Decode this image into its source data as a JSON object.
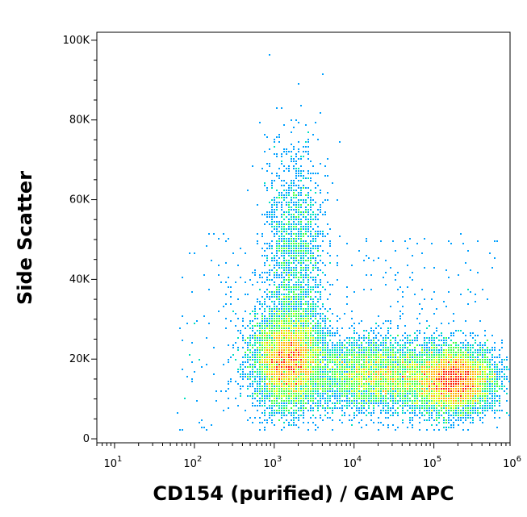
{
  "chart_data": {
    "type": "scatter",
    "subtype": "flow-cytometry-density-dot-plot",
    "title": "",
    "xlabel": "CD154 (purified) / GAM APC",
    "ylabel": "Side Scatter",
    "x_scale": "log",
    "xlim": [
      6,
      900000
    ],
    "ylim": [
      -1000,
      102000
    ],
    "x_ticks": [
      {
        "value": 10,
        "base": "10",
        "exp": "1"
      },
      {
        "value": 100,
        "base": "10",
        "exp": "2"
      },
      {
        "value": 1000,
        "base": "10",
        "exp": "3"
      },
      {
        "value": 10000,
        "base": "10",
        "exp": "4"
      },
      {
        "value": 100000,
        "base": "10",
        "exp": "5"
      },
      {
        "value": 1000000,
        "base": "10",
        "exp": "6"
      }
    ],
    "y_ticks": [
      {
        "value": 0,
        "label": "0"
      },
      {
        "value": 20000,
        "label": "20K"
      },
      {
        "value": 40000,
        "label": "40K"
      },
      {
        "value": 60000,
        "label": "60K"
      },
      {
        "value": 80000,
        "label": "80K"
      },
      {
        "value": 100000,
        "label": "100K"
      }
    ],
    "grid": false,
    "legend": "none",
    "colormap": [
      "#0000ff",
      "#00a0ff",
      "#00e0c0",
      "#40ff40",
      "#d0ff00",
      "#ffb000",
      "#ff2000"
    ],
    "populations": [
      {
        "x_center": 1500,
        "y_center": 20000,
        "x_spread_decades": 0.22,
        "y_sd": 6000,
        "density": "high"
      },
      {
        "x_center": 1800,
        "y_center": 45000,
        "x_spread_decades": 0.18,
        "y_sd": 14000,
        "density": "low"
      },
      {
        "x_center": 20000,
        "y_center": 16000,
        "x_spread_decades": 0.45,
        "y_sd": 4500,
        "density": "medium"
      },
      {
        "x_center": 180000,
        "y_center": 14500,
        "x_spread_decades": 0.25,
        "y_sd": 4000,
        "density": "high"
      }
    ]
  }
}
